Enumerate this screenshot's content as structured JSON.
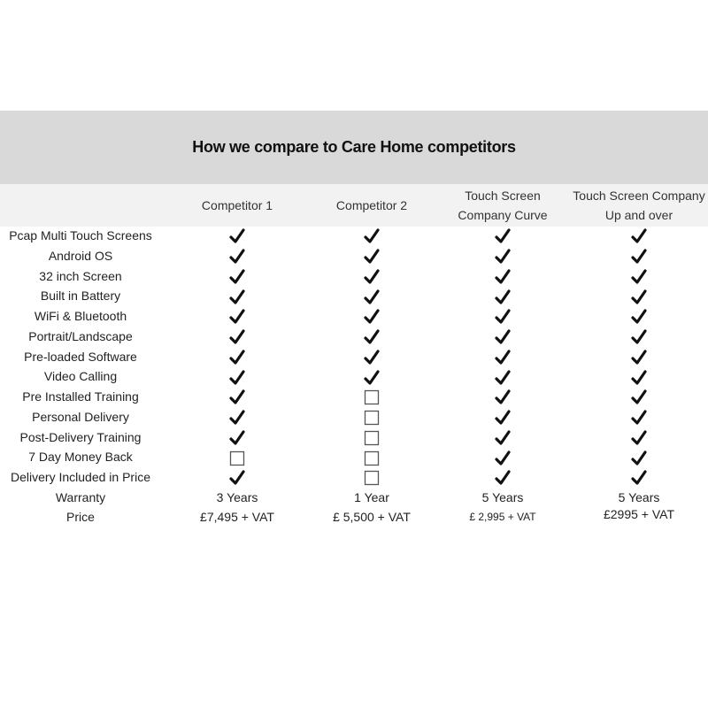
{
  "title": "How we compare to Care Home competitors",
  "columns": [
    "Competitor 1",
    "Competitor 2",
    "Touch Screen Company Curve",
    "Touch Screen Company Up and over"
  ],
  "column_lines": [
    [
      "Competitor 1"
    ],
    [
      "Competitor 2"
    ],
    [
      "Touch Screen",
      "Company Curve"
    ],
    [
      "Touch Screen Company",
      "Up and over"
    ]
  ],
  "features": [
    {
      "label": "Pcap Multi Touch Screens",
      "values": [
        true,
        true,
        true,
        true
      ]
    },
    {
      "label": "Android OS",
      "values": [
        true,
        true,
        true,
        true
      ]
    },
    {
      "label": "32 inch Screen",
      "values": [
        true,
        true,
        true,
        true
      ]
    },
    {
      "label": "Built in Battery",
      "values": [
        true,
        true,
        true,
        true
      ]
    },
    {
      "label": "WiFi & Bluetooth",
      "values": [
        true,
        true,
        true,
        true
      ]
    },
    {
      "label": "Portrait/Landscape",
      "values": [
        true,
        true,
        true,
        true
      ]
    },
    {
      "label": "Pre-loaded Software",
      "values": [
        true,
        true,
        true,
        true
      ]
    },
    {
      "label": "Video Calling",
      "values": [
        true,
        true,
        true,
        true
      ]
    },
    {
      "label": "Pre Installed Training",
      "values": [
        true,
        false,
        true,
        true
      ]
    },
    {
      "label": "Personal Delivery",
      "values": [
        true,
        false,
        true,
        true
      ]
    },
    {
      "label": "Post-Delivery Training",
      "values": [
        true,
        false,
        true,
        true
      ]
    },
    {
      "label": "7 Day Money Back",
      "values": [
        false,
        false,
        true,
        true
      ]
    },
    {
      "label": "Delivery Included in Price",
      "values": [
        true,
        false,
        true,
        true
      ]
    }
  ],
  "warranty": {
    "label": "Warranty",
    "values": [
      "3 Years",
      "1 Year",
      "5 Years",
      "5 Years"
    ]
  },
  "price": {
    "label": "Price",
    "values": [
      "£7,495 + VAT",
      "£ 5,500 + VAT",
      "£ 2,995 + VAT",
      "£2995 + VAT"
    ]
  }
}
